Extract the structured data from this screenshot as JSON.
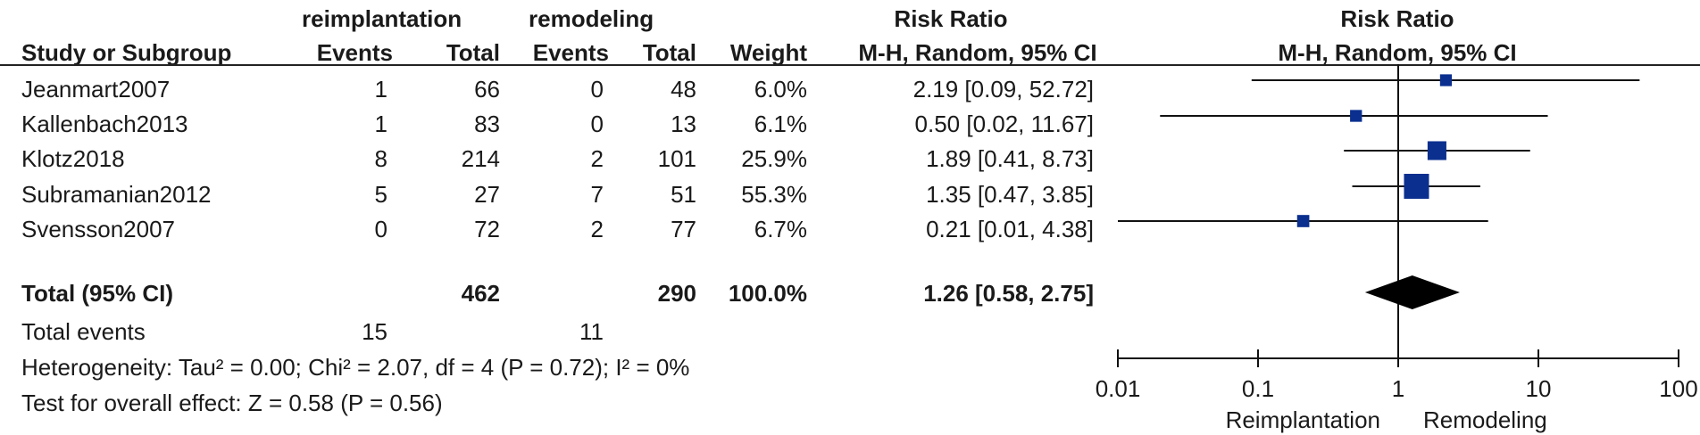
{
  "groups": {
    "experimental": "reimplantation",
    "control": "remodeling"
  },
  "headers": {
    "study": "Study or Subgroup",
    "events1": "Events",
    "total1": "Total",
    "events2": "Events",
    "total2": "Total",
    "weight": "Weight",
    "effect_title": "Risk Ratio",
    "effect_method": "M-H, Random, 95% CI",
    "plot_title": "Risk Ratio",
    "plot_method": "M-H, Random, 95% CI"
  },
  "studies": [
    {
      "name": "Jeanmart2007",
      "events1": "1",
      "total1": "66",
      "events2": "0",
      "total2": "48",
      "weight": "6.0%",
      "ci_text": "2.19 [0.09, 52.72]",
      "rr": 2.19,
      "lo": 0.09,
      "hi": 52.72,
      "w": 6.0
    },
    {
      "name": "Kallenbach2013",
      "events1": "1",
      "total1": "83",
      "events2": "0",
      "total2": "13",
      "weight": "6.1%",
      "ci_text": "0.50 [0.02, 11.67]",
      "rr": 0.5,
      "lo": 0.02,
      "hi": 11.67,
      "w": 6.1
    },
    {
      "name": "Klotz2018",
      "events1": "8",
      "total1": "214",
      "events2": "2",
      "total2": "101",
      "weight": "25.9%",
      "ci_text": "1.89 [0.41, 8.73]",
      "rr": 1.89,
      "lo": 0.41,
      "hi": 8.73,
      "w": 25.9
    },
    {
      "name": "Subramanian2012",
      "events1": "5",
      "total1": "27",
      "events2": "7",
      "total2": "51",
      "weight": "55.3%",
      "ci_text": "1.35 [0.47, 3.85]",
      "rr": 1.35,
      "lo": 0.47,
      "hi": 3.85,
      "w": 55.3
    },
    {
      "name": "Svensson2007",
      "events1": "0",
      "total1": "72",
      "events2": "2",
      "total2": "77",
      "weight": "6.7%",
      "ci_text": "0.21 [0.01, 4.38]",
      "rr": 0.21,
      "lo": 0.01,
      "hi": 4.38,
      "w": 6.7
    }
  ],
  "total": {
    "label": "Total (95% CI)",
    "total1": "462",
    "total2": "290",
    "weight": "100.0%",
    "ci_text": "1.26 [0.58, 2.75]",
    "rr": 1.26,
    "lo": 0.58,
    "hi": 2.75
  },
  "total_events": {
    "label": "Total events",
    "events1": "15",
    "events2": "11"
  },
  "heterogeneity": "Heterogeneity: Tau² = 0.00; Chi² = 2.07, df = 4 (P = 0.72); I² = 0%",
  "overall_effect": "Test for overall effect: Z = 0.58 (P = 0.56)",
  "chart_data": {
    "type": "forest",
    "x_scale": "log",
    "xlim": [
      0.01,
      100
    ],
    "ticks": [
      0.01,
      0.1,
      1,
      10,
      100
    ],
    "tick_labels": [
      "0.01",
      "0.1",
      "1",
      "10",
      "100"
    ],
    "null_line": 1,
    "favours_left": "Reimplantation",
    "favours_right": "Remodeling",
    "marker_color": "#0a2f8f",
    "diamond_color": "#000000"
  }
}
